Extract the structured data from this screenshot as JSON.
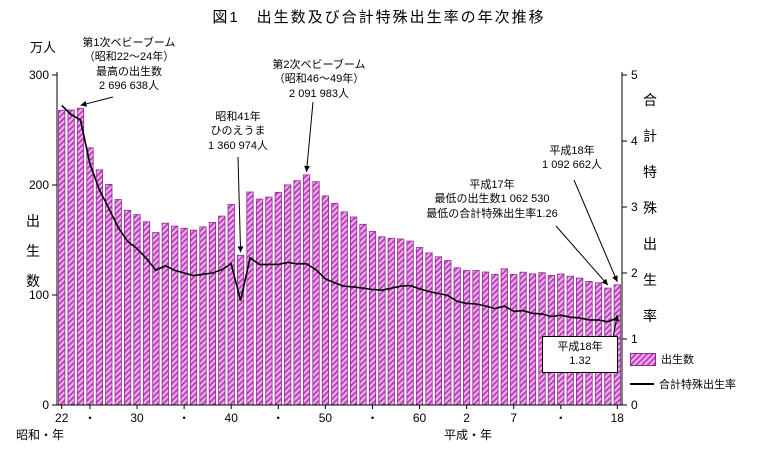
{
  "title": "図1　出生数及び合計特殊出生率の年次推移",
  "axes": {
    "left_unit": "万人",
    "left_label": "出生数",
    "right_label": "合計特殊出生率",
    "left_ticks": [
      0,
      100,
      200,
      300
    ],
    "right_ticks": [
      0,
      1,
      2,
      3,
      4,
      5
    ],
    "x_caption_left": "昭和・年",
    "x_caption_right": "平成・年"
  },
  "legend": {
    "births_label": "出生数",
    "tfr_label": "合計特殊出生率"
  },
  "colors": {
    "bar_fill_base": "#f0b0f0",
    "bar_hatch": "#b93cb9",
    "bar_stroke": "#8d2a8d",
    "line": "#000000"
  },
  "annotations": [
    {
      "id": "boom1",
      "text": "第1次ベビーブーム\n（昭和22～24年）\n最高の出生数\n2 696 638人",
      "target": {
        "series": "births",
        "year": 1949
      }
    },
    {
      "id": "hinoeuma",
      "text": "昭和41年\nひのえうま\n1 360 974人",
      "target": {
        "series": "births",
        "year": 1966
      }
    },
    {
      "id": "boom2",
      "text": "第2次ベビーブーム\n（昭和46～49年）\n2 091 983人",
      "target": {
        "series": "births",
        "year": 1973
      }
    },
    {
      "id": "h17",
      "text": "平成17年\n最低の出生数1 062 530\n最低の合計特殊出生率1.26",
      "target": {
        "series": "births",
        "year": 2005
      }
    },
    {
      "id": "h18births",
      "text": "平成18年\n1 092 662人",
      "target": {
        "series": "births",
        "year": 2006
      }
    },
    {
      "id": "h18tfr",
      "text": "平成18年\n1.32",
      "target": {
        "series": "tfr",
        "year": 2006
      },
      "boxed": true
    }
  ],
  "chart_data": {
    "type": "bar+line",
    "title": "出生数及び合計特殊出生率の年次推移",
    "year_start": 1947,
    "year_end": 2006,
    "ylim_left": [
      0,
      300
    ],
    "ylim_right": [
      0,
      5
    ],
    "x_labels": [
      {
        "year": 1947,
        "label": "22"
      },
      {
        "year": 1950,
        "label": "・"
      },
      {
        "year": 1955,
        "label": "30"
      },
      {
        "year": 1960,
        "label": "・"
      },
      {
        "year": 1965,
        "label": "40"
      },
      {
        "year": 1970,
        "label": "・"
      },
      {
        "year": 1975,
        "label": "50"
      },
      {
        "year": 1980,
        "label": "・"
      },
      {
        "year": 1985,
        "label": "60"
      },
      {
        "year": 1990,
        "label": "2"
      },
      {
        "year": 1995,
        "label": "7"
      },
      {
        "year": 2000,
        "label": "・"
      },
      {
        "year": 2006,
        "label": "18"
      }
    ],
    "series": [
      {
        "name": "出生数",
        "type": "bar",
        "axis": "left",
        "unit": "万人",
        "values": [
          267.9,
          268.2,
          269.7,
          233.8,
          213.8,
          200.5,
          186.8,
          177.0,
          173.1,
          166.5,
          156.7,
          165.3,
          162.6,
          160.6,
          158.9,
          161.9,
          166.0,
          171.7,
          182.4,
          136.1,
          193.6,
          187.2,
          189.0,
          193.4,
          200.1,
          203.9,
          209.2,
          203.0,
          190.1,
          183.3,
          175.5,
          170.9,
          164.3,
          157.7,
          152.9,
          151.5,
          150.9,
          149.0,
          143.2,
          138.3,
          134.7,
          131.4,
          124.7,
          122.2,
          122.3,
          120.9,
          118.8,
          123.8,
          118.7,
          120.7,
          119.2,
          120.3,
          117.8,
          119.1,
          117.1,
          115.4,
          112.4,
          111.1,
          106.3,
          109.3
        ]
      },
      {
        "name": "合計特殊出生率",
        "type": "line",
        "axis": "right",
        "values": [
          4.54,
          4.4,
          4.32,
          3.65,
          3.26,
          2.98,
          2.69,
          2.48,
          2.37,
          2.22,
          2.04,
          2.11,
          2.04,
          2.0,
          1.96,
          1.98,
          2.0,
          2.05,
          2.14,
          1.58,
          2.23,
          2.13,
          2.13,
          2.13,
          2.16,
          2.14,
          2.14,
          2.05,
          1.91,
          1.85,
          1.8,
          1.79,
          1.77,
          1.75,
          1.74,
          1.77,
          1.8,
          1.81,
          1.76,
          1.72,
          1.69,
          1.66,
          1.57,
          1.54,
          1.53,
          1.5,
          1.46,
          1.5,
          1.42,
          1.43,
          1.39,
          1.38,
          1.34,
          1.36,
          1.33,
          1.32,
          1.29,
          1.29,
          1.26,
          1.32
        ]
      }
    ]
  }
}
